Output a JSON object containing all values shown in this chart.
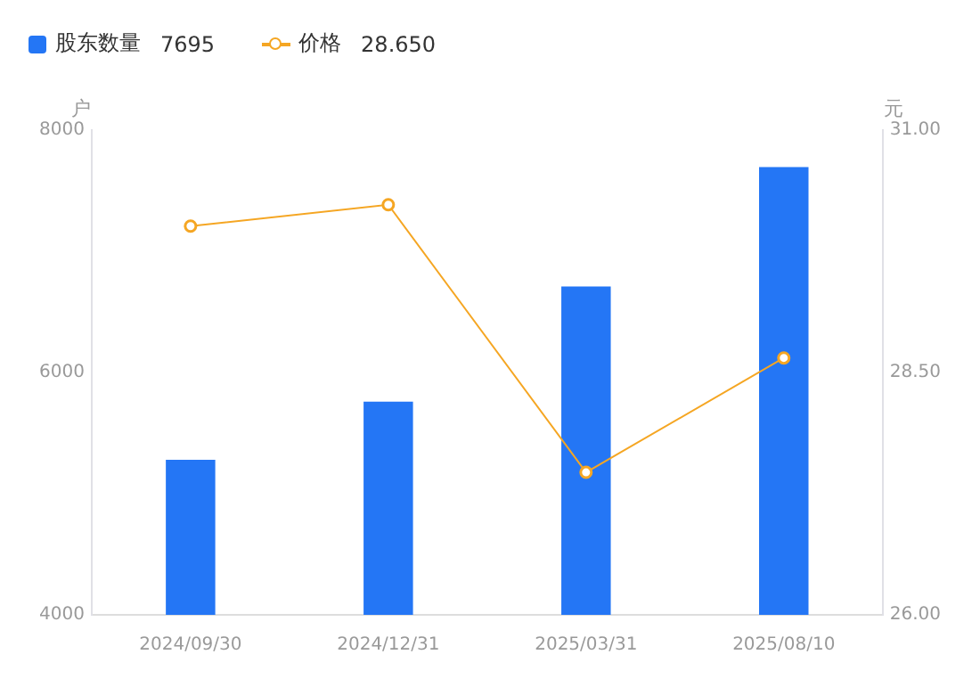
{
  "chart_data": {
    "type": "bar",
    "ylabel": "户",
    "y2label": "元",
    "categories": [
      "2024/09/30",
      "2024/12/31",
      "2025/03/31",
      "2025/08/10"
    ],
    "series": [
      {
        "name": "股东数量",
        "color": "#2476f5",
        "values": [
          5280,
          5760,
          6710,
          7695
        ]
      },
      {
        "name": "价格",
        "type": "line",
        "axis": "y2",
        "color": "#f5a623",
        "values": [
          30.01,
          30.23,
          27.47,
          28.65
        ]
      }
    ],
    "ylim": [
      4000,
      8000
    ],
    "yticks": [
      4000,
      6000,
      8000
    ],
    "y2lim": [
      26,
      31
    ],
    "y2ticks": [
      {
        "value": 26,
        "label": "26.00"
      },
      {
        "value": 28.5,
        "label": "28.50"
      },
      {
        "value": 31,
        "label": "31.00"
      }
    ],
    "annotations": [
      "7695",
      "28.650"
    ],
    "legend": "top left",
    "marker": "circle",
    "grid": false
  }
}
